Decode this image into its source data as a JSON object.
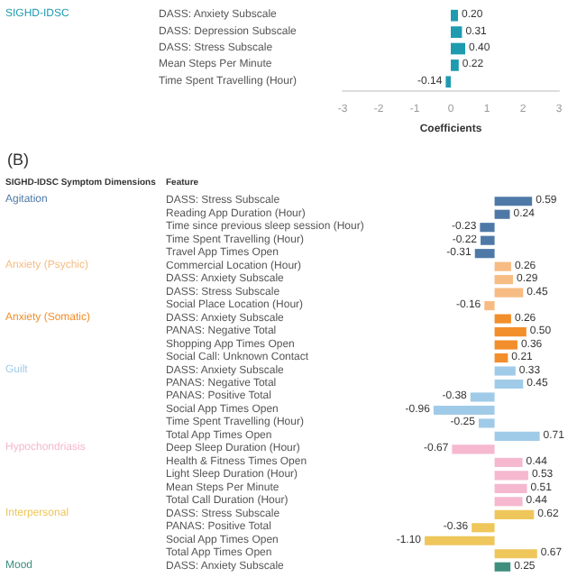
{
  "chart_data": [
    {
      "type": "bar",
      "orientation": "horizontal",
      "xlabel": "Coefficients",
      "categories": [
        "DASS: Anxiety Subscale",
        "DASS: Depression Subscale",
        "DASS: Stress Subscale",
        "Mean Steps Per Minute",
        "Time Spent Travelling (Hour)"
      ],
      "series": [
        {
          "name": "SIGHD-IDSC",
          "color": "#1f9bb0",
          "values": [
            0.2,
            0.31,
            0.4,
            0.22,
            -0.14
          ],
          "value_labels": [
            "0.20",
            "0.31",
            "0.40",
            "0.22",
            "-0.14"
          ]
        }
      ],
      "xlim": [
        -3,
        3
      ],
      "xticks": [
        -3,
        -2,
        -1,
        0,
        1,
        2,
        3
      ],
      "grid": false,
      "legend": false
    },
    {
      "type": "bar",
      "orientation": "horizontal",
      "stacked": true,
      "annotations": [
        "(B)",
        "SIGHD-IDSC Symptom Dimensions",
        "Feature"
      ],
      "categories": [
        "DASS: Stress Subscale",
        "Reading App Duration (Hour)",
        "Time since previous sleep session (Hour)",
        "Time Spent Travelling (Hour)",
        "Travel App Times Open",
        "Commercial Location (Hour)",
        "DASS: Anxiety Subscale",
        "DASS: Stress Subscale",
        "Social Place Location (Hour)",
        "DASS: Anxiety Subscale",
        "PANAS: Negative Total",
        "Shopping App Times Open",
        "Social Call: Unknown Contact",
        "DASS: Anxiety Subscale",
        "PANAS: Negative Total",
        "PANAS: Positive Total",
        "Social App Times Open",
        "Time Spent Travelling (Hour)",
        "Total App Times Open",
        "Deep Sleep Duration (Hour)",
        "Health & Fitness Times Open",
        "Light Sleep Duration (Hour)",
        "Mean Steps Per Minute",
        "Total Call Duration (Hour)",
        "DASS: Stress Subscale",
        "PANAS: Positive Total",
        "Social App Times Open",
        "Total App Times Open",
        "DASS: Anxiety Subscale"
      ],
      "series": [
        {
          "name": "Agitation",
          "color": "#4e79a7",
          "values": [
            0.59,
            0.24,
            -0.23,
            -0.22,
            -0.31,
            null,
            null,
            null,
            null,
            null,
            null,
            null,
            null,
            null,
            null,
            null,
            null,
            null,
            null,
            null,
            null,
            null,
            null,
            null,
            null,
            null,
            null,
            null,
            null
          ],
          "value_labels": [
            "0.59",
            "0.24",
            "-0.23",
            "-0.22",
            "-0.31",
            null,
            null,
            null,
            null,
            null,
            null,
            null,
            null,
            null,
            null,
            null,
            null,
            null,
            null,
            null,
            null,
            null,
            null,
            null,
            null,
            null,
            null,
            null,
            null
          ]
        },
        {
          "name": "Anxiety (Psychic)",
          "color": "#f7bc83",
          "values": [
            null,
            null,
            null,
            null,
            null,
            0.26,
            0.29,
            0.45,
            -0.16,
            null,
            null,
            null,
            null,
            null,
            null,
            null,
            null,
            null,
            null,
            null,
            null,
            null,
            null,
            null,
            null,
            null,
            null,
            null,
            null
          ],
          "value_labels": [
            null,
            null,
            null,
            null,
            null,
            "0.26",
            "0.29",
            "0.45",
            "-0.16",
            null,
            null,
            null,
            null,
            null,
            null,
            null,
            null,
            null,
            null,
            null,
            null,
            null,
            null,
            null,
            null,
            null,
            null,
            null,
            null
          ]
        },
        {
          "name": "Anxiety (Somatic)",
          "color": "#f28e2b",
          "values": [
            null,
            null,
            null,
            null,
            null,
            null,
            null,
            null,
            null,
            0.26,
            0.5,
            0.36,
            0.21,
            null,
            null,
            null,
            null,
            null,
            null,
            null,
            null,
            null,
            null,
            null,
            null,
            null,
            null,
            null,
            null
          ],
          "value_labels": [
            null,
            null,
            null,
            null,
            null,
            null,
            null,
            null,
            null,
            "0.26",
            "0.50",
            "0.36",
            "0.21",
            null,
            null,
            null,
            null,
            null,
            null,
            null,
            null,
            null,
            null,
            null,
            null,
            null,
            null,
            null,
            null
          ]
        },
        {
          "name": "Guilt",
          "color": "#a0cbe8",
          "values": [
            null,
            null,
            null,
            null,
            null,
            null,
            null,
            null,
            null,
            null,
            null,
            null,
            null,
            0.33,
            0.45,
            -0.38,
            -0.96,
            -0.25,
            0.71,
            null,
            null,
            null,
            null,
            null,
            null,
            null,
            null,
            null,
            null
          ],
          "value_labels": [
            null,
            null,
            null,
            null,
            null,
            null,
            null,
            null,
            null,
            null,
            null,
            null,
            null,
            "0.33",
            "0.45",
            "-0.38",
            "-0.96",
            "-0.25",
            "0.71",
            null,
            null,
            null,
            null,
            null,
            null,
            null,
            null,
            null,
            null
          ]
        },
        {
          "name": "Hypochondriasis",
          "color": "#f5b8cf",
          "values": [
            null,
            null,
            null,
            null,
            null,
            null,
            null,
            null,
            null,
            null,
            null,
            null,
            null,
            null,
            null,
            null,
            null,
            null,
            null,
            -0.67,
            0.44,
            0.53,
            0.51,
            0.44,
            null,
            null,
            null,
            null,
            null
          ],
          "value_labels": [
            null,
            null,
            null,
            null,
            null,
            null,
            null,
            null,
            null,
            null,
            null,
            null,
            null,
            null,
            null,
            null,
            null,
            null,
            null,
            "-0.67",
            "0.44",
            "0.53",
            "0.51",
            "0.44",
            null,
            null,
            null,
            null,
            null
          ]
        },
        {
          "name": "Interpersonal",
          "color": "#eec65a",
          "values": [
            null,
            null,
            null,
            null,
            null,
            null,
            null,
            null,
            null,
            null,
            null,
            null,
            null,
            null,
            null,
            null,
            null,
            null,
            null,
            null,
            null,
            null,
            null,
            null,
            0.62,
            -0.36,
            -1.1,
            0.67,
            null
          ],
          "value_labels": [
            null,
            null,
            null,
            null,
            null,
            null,
            null,
            null,
            null,
            null,
            null,
            null,
            null,
            null,
            null,
            null,
            null,
            null,
            null,
            null,
            null,
            null,
            null,
            null,
            "0.62",
            "-0.36",
            "-1.10",
            "0.67",
            null
          ]
        },
        {
          "name": "Mood",
          "color": "#3f8f7f",
          "values": [
            null,
            null,
            null,
            null,
            null,
            null,
            null,
            null,
            null,
            null,
            null,
            null,
            null,
            null,
            null,
            null,
            null,
            null,
            null,
            null,
            null,
            null,
            null,
            null,
            null,
            null,
            null,
            null,
            0.25
          ],
          "value_labels": [
            null,
            null,
            null,
            null,
            null,
            null,
            null,
            null,
            null,
            null,
            null,
            null,
            null,
            null,
            null,
            null,
            null,
            null,
            null,
            null,
            null,
            null,
            null,
            null,
            null,
            null,
            null,
            null,
            "0.25"
          ]
        }
      ],
      "legend": false
    }
  ]
}
